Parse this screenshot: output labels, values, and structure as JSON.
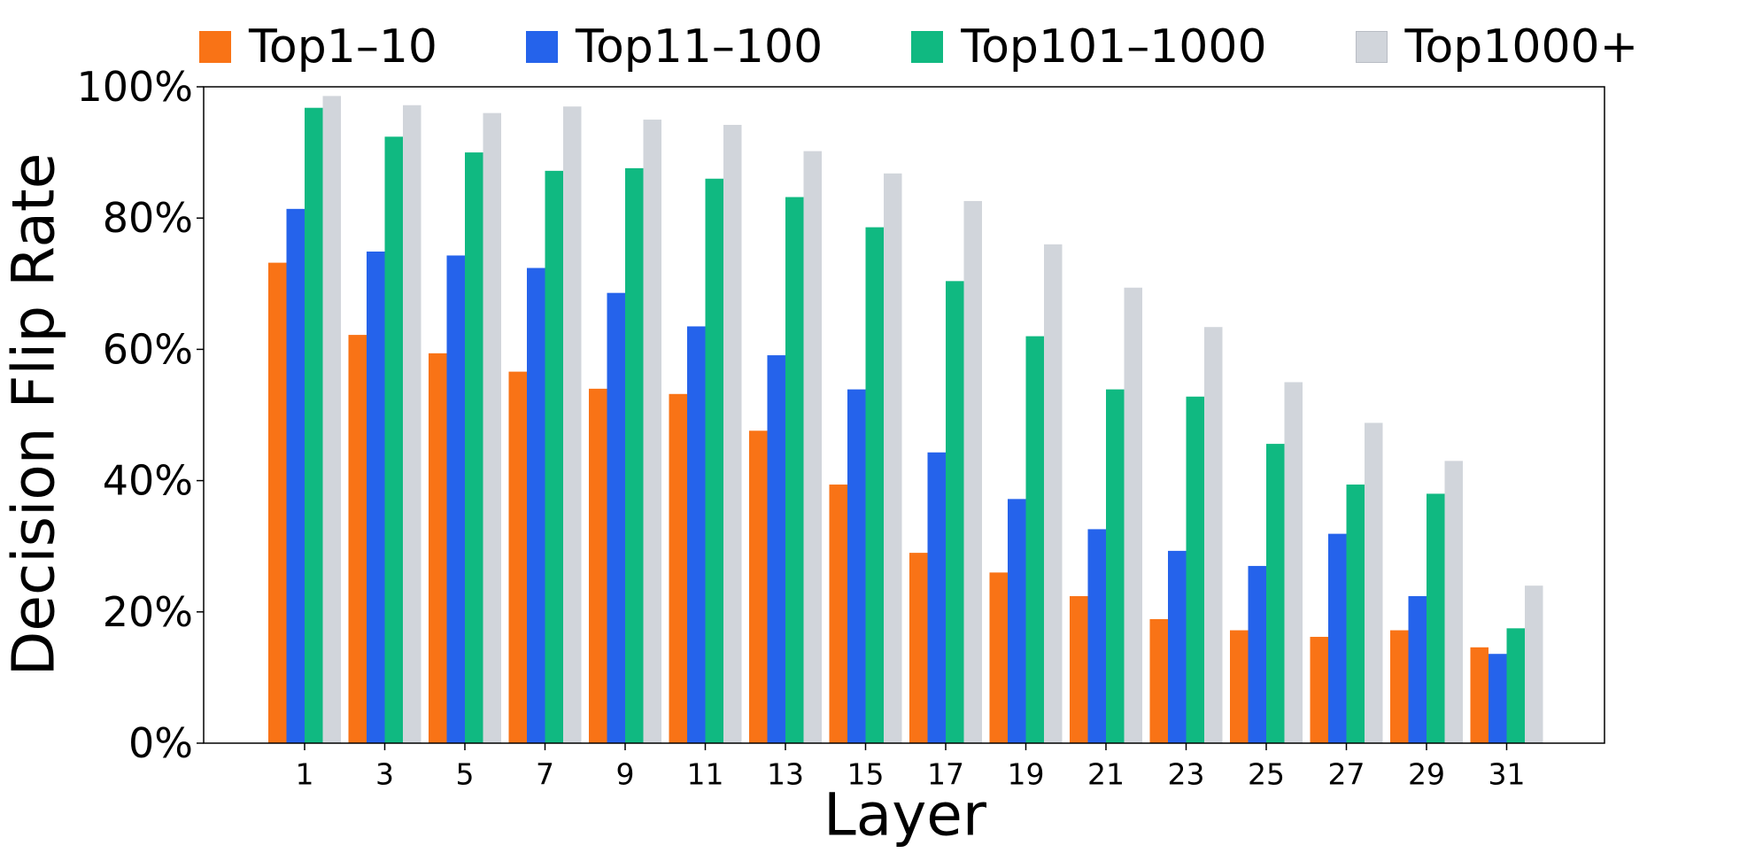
{
  "chart_data": {
    "type": "bar",
    "xlabel": "Layer",
    "ylabel": "Decision Flip Rate",
    "ylim": [
      0,
      100
    ],
    "yticks": [
      "0%",
      "20%",
      "40%",
      "60%",
      "80%",
      "100%"
    ],
    "yticks_values": [
      0,
      20,
      40,
      60,
      80,
      100
    ],
    "categories": [
      "1",
      "3",
      "5",
      "7",
      "9",
      "11",
      "13",
      "15",
      "17",
      "19",
      "21",
      "23",
      "25",
      "27",
      "29",
      "31"
    ],
    "legend_position": "top",
    "grid": false,
    "series": [
      {
        "name": "Top1–10",
        "color": "#f97316",
        "values": [
          73.2,
          62.2,
          59.4,
          56.6,
          54.0,
          53.2,
          47.6,
          39.4,
          29.0,
          26.0,
          22.4,
          18.9,
          17.2,
          16.2,
          17.2,
          14.6
        ]
      },
      {
        "name": "Top11–100",
        "color": "#2563eb",
        "values": [
          81.4,
          74.9,
          74.3,
          72.4,
          68.6,
          63.5,
          59.1,
          53.9,
          44.3,
          37.2,
          32.6,
          29.3,
          27.0,
          31.9,
          22.4,
          13.6
        ]
      },
      {
        "name": "Top101–1000",
        "color": "#10b981",
        "values": [
          96.8,
          92.4,
          90.0,
          87.2,
          87.6,
          86.0,
          83.2,
          78.6,
          70.4,
          62.0,
          53.9,
          52.8,
          45.6,
          39.4,
          38.0,
          17.5
        ]
      },
      {
        "name": "Top1000+",
        "color": "#d1d5db",
        "values": [
          98.6,
          97.2,
          96.0,
          97.0,
          95.0,
          94.2,
          90.2,
          86.8,
          82.6,
          76.0,
          69.4,
          63.4,
          55.0,
          48.8,
          43.0,
          24.0
        ]
      }
    ]
  }
}
